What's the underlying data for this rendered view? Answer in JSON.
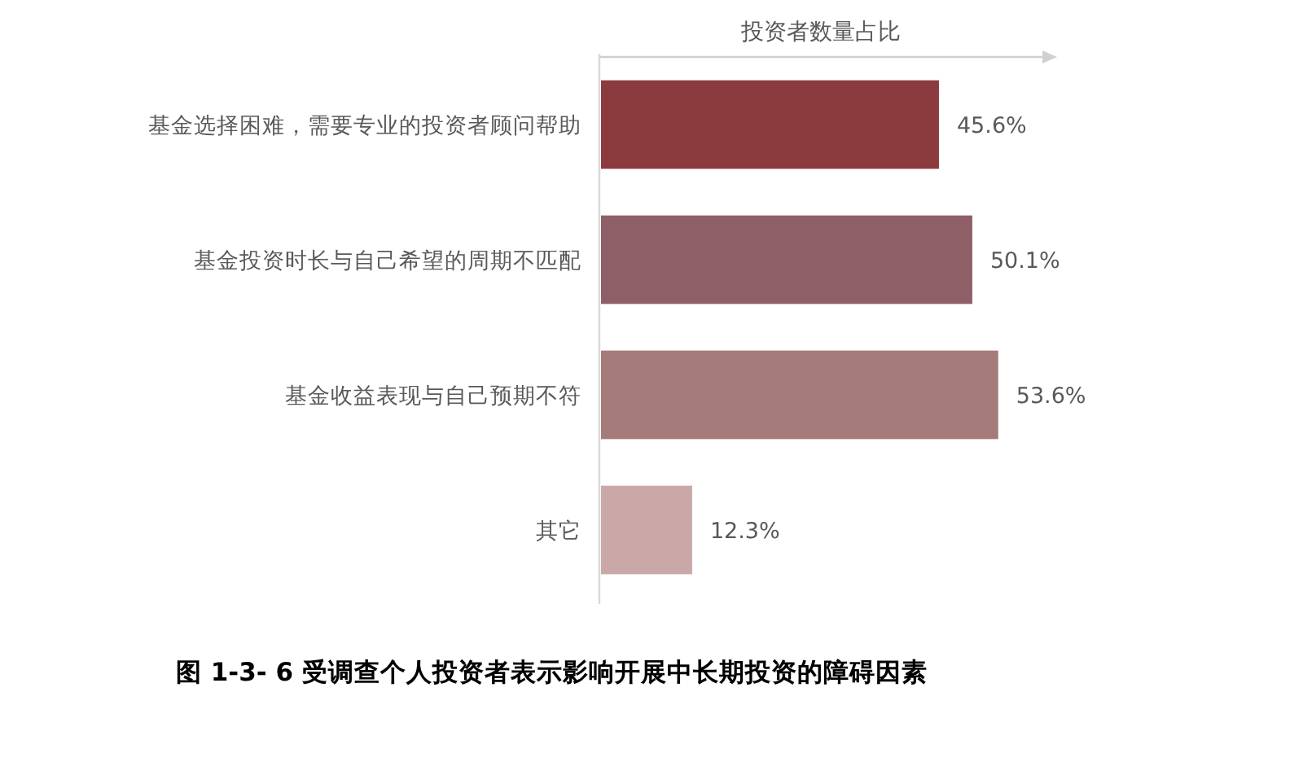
{
  "chart_data": {
    "type": "bar",
    "orientation": "horizontal",
    "title": "图 1-3- 6 受调查个人投资者表示影响开展中长期投资的障碍因素",
    "xlabel": "投资者数量占比",
    "categories": [
      "基金选择困难，需要专业的投资者顾问帮助",
      "基金投资时长与自己希望的周期不匹配",
      "基金收益表现与自己预期不符",
      "其它"
    ],
    "values": [
      45.6,
      50.1,
      53.6,
      12.3
    ],
    "colors": [
      "#8b3a3e",
      "#8f5f68",
      "#a47b78",
      "#c9a8a7"
    ],
    "value_labels": [
      "45.6%",
      "50.1%",
      "53.6%",
      "12.3%"
    ]
  }
}
